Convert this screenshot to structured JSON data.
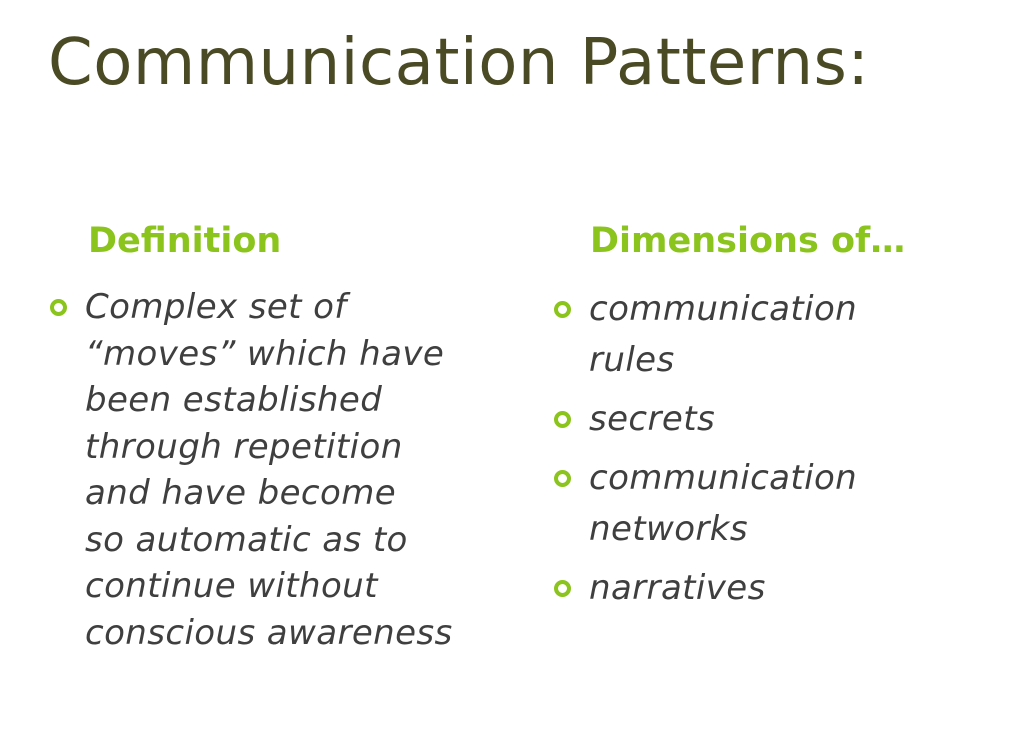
{
  "slide": {
    "title": "Communication Patterns:"
  },
  "left_column": {
    "heading": "Definition",
    "bullets": [
      {
        "lines": [
          "Complex set of",
          "“moves” which have",
          "been established",
          "through repetition",
          "and have become",
          "so automatic as to",
          "continue without",
          "conscious awareness"
        ]
      }
    ]
  },
  "right_column": {
    "heading": "Dimensions of…",
    "bullets": [
      {
        "lines": [
          "communication",
          "rules"
        ]
      },
      {
        "lines": [
          "secrets"
        ]
      },
      {
        "lines": [
          "communication",
          "networks"
        ]
      },
      {
        "lines": [
          "narratives"
        ]
      }
    ]
  },
  "colors": {
    "title": "#4a4a24",
    "accent": "#8bc41d",
    "body_text": "#3f3f3f",
    "background": "#ffffff"
  },
  "icons": {
    "bullet": "hollow-circle-bullet-icon"
  }
}
